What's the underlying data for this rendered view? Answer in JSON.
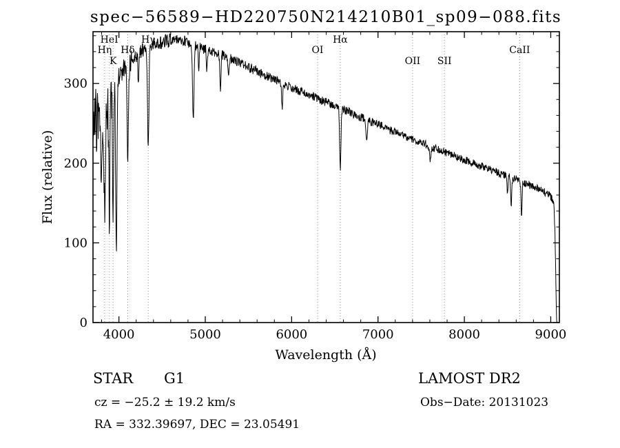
{
  "title": "spec−56589−HD220750N214210B01_sp09−088.fits",
  "chart_data": {
    "type": "line",
    "title": "spec−56589−HD220750N214210B01_sp09−088.fits",
    "xlabel": "Wavelength (Å)",
    "ylabel": "Flux (relative)",
    "xlim": [
      3700,
      9100
    ],
    "ylim": [
      0,
      365
    ],
    "xticks": [
      4000,
      5000,
      6000,
      7000,
      8000,
      9000
    ],
    "yticks": [
      0,
      100,
      200,
      300
    ],
    "x_minor_step": 200,
    "y_minor_step": 20,
    "grid": "off",
    "line_color": "#000000",
    "marker_line_color": "#999999",
    "sample_step": 4,
    "noise_seed": 20131023,
    "continuum": [
      [
        3700,
        215
      ],
      [
        3715,
        245
      ],
      [
        3730,
        260
      ],
      [
        3745,
        250
      ],
      [
        3760,
        252
      ],
      [
        3800,
        255
      ],
      [
        3850,
        265
      ],
      [
        3900,
        280
      ],
      [
        3950,
        295
      ],
      [
        4000,
        310
      ],
      [
        4050,
        318
      ],
      [
        4150,
        330
      ],
      [
        4250,
        340
      ],
      [
        4350,
        346
      ],
      [
        4450,
        350
      ],
      [
        4550,
        353
      ],
      [
        4650,
        356
      ],
      [
        4750,
        354
      ],
      [
        4850,
        350
      ],
      [
        4950,
        345
      ],
      [
        5050,
        341
      ],
      [
        5150,
        338
      ],
      [
        5250,
        334
      ],
      [
        5350,
        329
      ],
      [
        5450,
        323
      ],
      [
        5550,
        318
      ],
      [
        5700,
        310
      ],
      [
        5850,
        302
      ],
      [
        6000,
        295
      ],
      [
        6150,
        288
      ],
      [
        6300,
        281
      ],
      [
        6450,
        274
      ],
      [
        6600,
        267
      ],
      [
        6750,
        260
      ],
      [
        6900,
        253
      ],
      [
        7050,
        246
      ],
      [
        7200,
        239
      ],
      [
        7350,
        232
      ],
      [
        7500,
        226
      ],
      [
        7650,
        219
      ],
      [
        7800,
        213
      ],
      [
        7950,
        206
      ],
      [
        8100,
        200
      ],
      [
        8250,
        194
      ],
      [
        8400,
        188
      ],
      [
        8550,
        182
      ],
      [
        8700,
        175
      ],
      [
        8850,
        168
      ],
      [
        8950,
        163
      ],
      [
        9010,
        157
      ],
      [
        9035,
        148
      ],
      [
        9050,
        110
      ],
      [
        9060,
        45
      ],
      [
        9068,
        5
      ],
      [
        9072,
        0
      ]
    ],
    "absorption_lines": [
      {
        "wavelength": 3798,
        "depth": 90,
        "width": 7
      },
      {
        "wavelength": 3835,
        "depth": 115,
        "width": 7
      },
      {
        "wavelength": 3889,
        "depth": 140,
        "width": 7
      },
      {
        "wavelength": 3933,
        "depth": 150,
        "width": 6
      },
      {
        "wavelength": 3970,
        "depth": 215,
        "width": 7
      },
      {
        "wavelength": 4102,
        "depth": 118,
        "width": 8
      },
      {
        "wavelength": 4226,
        "depth": 45,
        "width": 5
      },
      {
        "wavelength": 4340,
        "depth": 126,
        "width": 8
      },
      {
        "wavelength": 4861,
        "depth": 98,
        "width": 8
      },
      {
        "wavelength": 4924,
        "depth": 35,
        "width": 5
      },
      {
        "wavelength": 5018,
        "depth": 30,
        "width": 5
      },
      {
        "wavelength": 5175,
        "depth": 42,
        "width": 7
      },
      {
        "wavelength": 5270,
        "depth": 28,
        "width": 6
      },
      {
        "wavelength": 5890,
        "depth": 32,
        "width": 6
      },
      {
        "wavelength": 6563,
        "depth": 80,
        "width": 7
      },
      {
        "wavelength": 6870,
        "depth": 22,
        "width": 9
      },
      {
        "wavelength": 7605,
        "depth": 18,
        "width": 10
      },
      {
        "wavelength": 8498,
        "depth": 25,
        "width": 5
      },
      {
        "wavelength": 8542,
        "depth": 42,
        "width": 6
      },
      {
        "wavelength": 8662,
        "depth": 42,
        "width": 6
      }
    ],
    "noise_regions": [
      {
        "until": 3760,
        "amp": 45
      },
      {
        "until": 3960,
        "amp": 30
      },
      {
        "until": 4150,
        "amp": 14
      },
      {
        "until": 4600,
        "amp": 9
      },
      {
        "until": 5600,
        "amp": 6.5
      },
      {
        "until": 7200,
        "amp": 5.5
      },
      {
        "until": 8600,
        "amp": 5
      },
      {
        "until": 9100,
        "amp": 5
      }
    ],
    "marked_lines": [
      {
        "label": "Hη",
        "wavelength": 3835,
        "row": 1
      },
      {
        "label": "HeI",
        "wavelength": 3889,
        "row": 0
      },
      {
        "label": "K",
        "wavelength": 3933,
        "row": 2
      },
      {
        "label": "Hδ",
        "wavelength": 4102,
        "row": 1
      },
      {
        "label": "Hγ",
        "wavelength": 4340,
        "row": 0
      },
      {
        "label": "OI",
        "wavelength": 6300,
        "row": 1
      },
      {
        "label": "Hα",
        "wavelength": 6563,
        "row": 0
      },
      {
        "label": "OII",
        "wavelength": 7400,
        "row": 2
      },
      {
        "label": "SII",
        "wavelength": 7770,
        "row": 2
      },
      {
        "label": "CaII",
        "wavelength": 8640,
        "row": 1
      }
    ]
  },
  "annotations": {
    "object_class": "STAR",
    "subclass": "G1",
    "survey": "LAMOST DR2",
    "cz": "cz = −25.2 ± 19.2 km/s",
    "obs_date": "Obs−Date: 20131023",
    "coords": "RA = 332.39697, DEC = 23.05491"
  }
}
